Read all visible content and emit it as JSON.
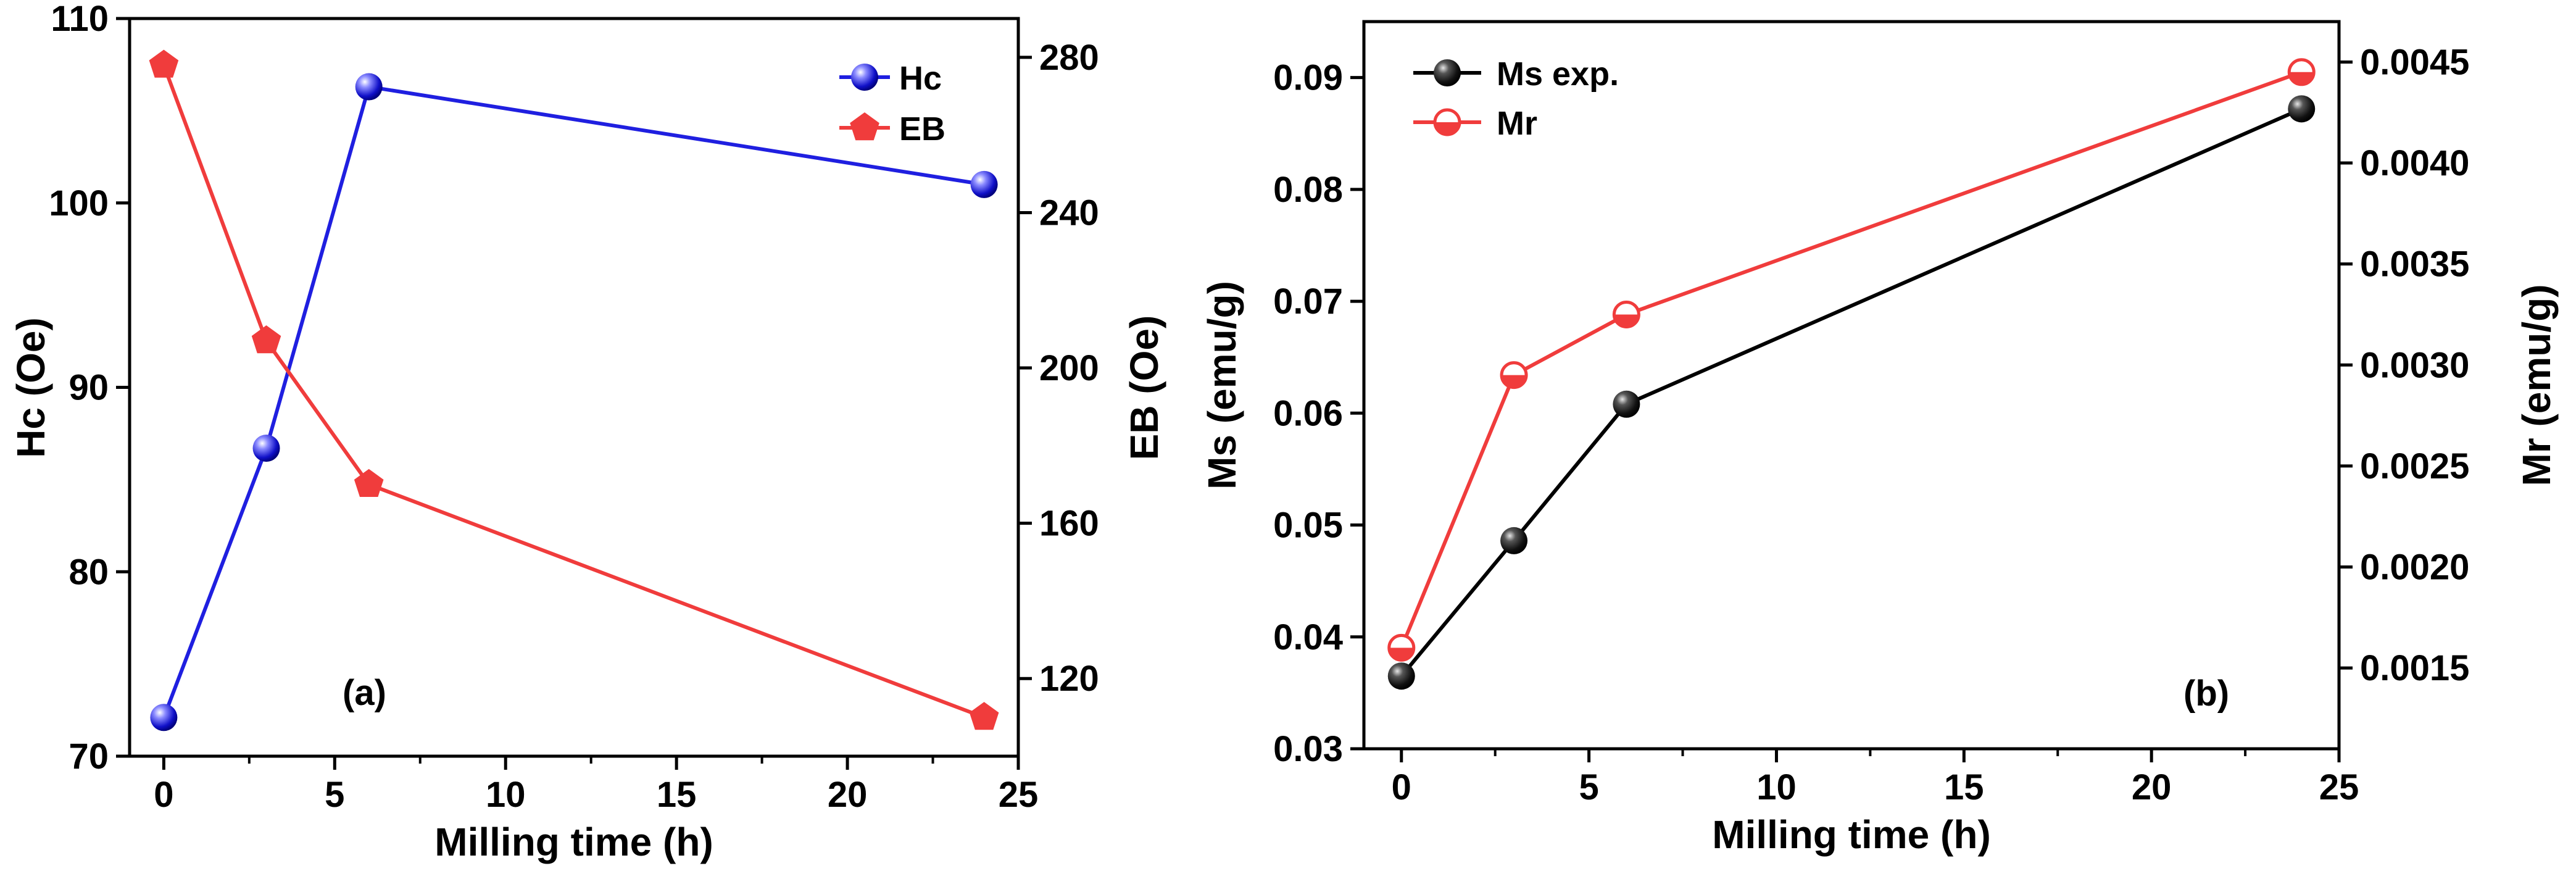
{
  "chart_data": [
    {
      "panel": "(a)",
      "type": "line",
      "xlabel": "Milling time (h)",
      "xlim": [
        -1,
        25
      ],
      "xticks": [
        0,
        5,
        10,
        15,
        20,
        25
      ],
      "ylabel_left": "Hc (Oe)",
      "ylim_left": [
        70,
        110
      ],
      "yticks_left": [
        70,
        80,
        90,
        100,
        110
      ],
      "ylabel_right": "EB (Oe)",
      "ylim_right": [
        100,
        290
      ],
      "yticks_right": [
        120,
        160,
        200,
        240,
        280
      ],
      "legend_position": "top-right",
      "series": [
        {
          "name": "Hc",
          "axis": "left",
          "color": "#1f1fe0",
          "marker": "sphere",
          "x": [
            0,
            3,
            6,
            24
          ],
          "y": [
            72.1,
            86.7,
            106.3,
            101.0
          ]
        },
        {
          "name": "EB",
          "axis": "right",
          "color": "#f03c3c",
          "marker": "pentagon",
          "x": [
            0,
            3,
            6,
            24
          ],
          "y": [
            278,
            207,
            170,
            110
          ]
        }
      ]
    },
    {
      "panel": "(b)",
      "type": "line",
      "xlabel": "Milling time (h)",
      "xlim": [
        -1,
        25
      ],
      "xticks": [
        0,
        5,
        10,
        15,
        20,
        25
      ],
      "ylabel_left": "Ms (emu/g)",
      "ylim_left": [
        0.03,
        0.095
      ],
      "yticks_left": [
        0.03,
        0.04,
        0.05,
        0.06,
        0.07,
        0.08,
        0.09
      ],
      "ylabel_right": "Mr (emu/g)",
      "ylim_right": [
        0.0011,
        0.0047
      ],
      "yticks_right": [
        0.0015,
        0.002,
        0.0025,
        0.003,
        0.0035,
        0.004,
        0.0045
      ],
      "legend_position": "top-left",
      "series": [
        {
          "name": "Ms exp.",
          "axis": "left",
          "color": "#000000",
          "marker": "sphere",
          "x": [
            0,
            3,
            6,
            24
          ],
          "y": [
            0.0365,
            0.0486,
            0.0608,
            0.0872
          ]
        },
        {
          "name": "Mr",
          "axis": "right",
          "color": "#f03c3c",
          "marker": "half-circle",
          "x": [
            0,
            3,
            6,
            24
          ],
          "y": [
            0.0016,
            0.00295,
            0.00325,
            0.00445
          ]
        }
      ]
    }
  ]
}
